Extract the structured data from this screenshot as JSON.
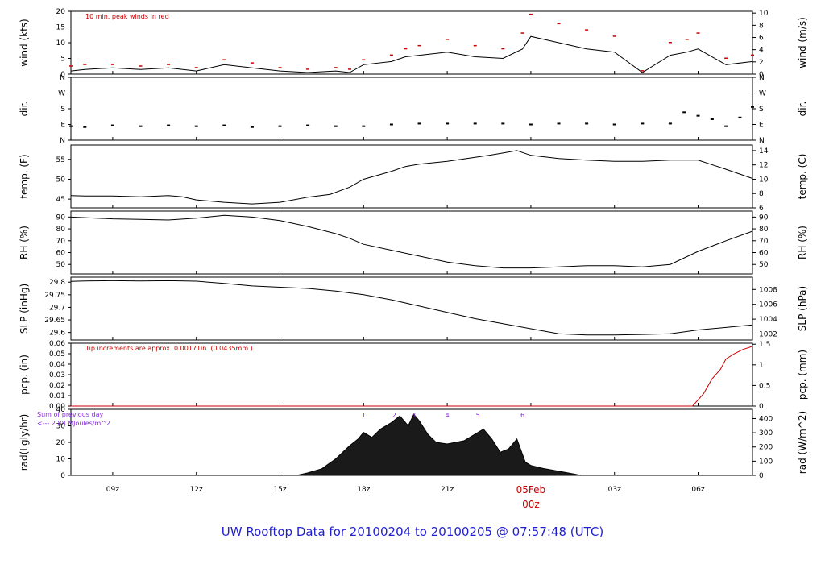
{
  "title": "UW Rooftop Data for 20100204  to  20100205 @ 07:57:48  (UTC)",
  "colors": {
    "line": "#000000",
    "peak": "#cc0000",
    "precip": "#cc0000",
    "solar_note": "#8a2be2",
    "title": "#1f1fd0"
  },
  "chart_data": [
    {
      "type": "line",
      "name": "wind",
      "ylabel": "wind (kts)",
      "ylabel_right": "wind (m/s)",
      "ylim": [
        0,
        20
      ],
      "yticks": [
        0,
        5,
        10,
        15,
        20
      ],
      "yticks_right": [
        {
          "label": "0",
          "value": 0
        },
        {
          "label": "2",
          "value": 3.89
        },
        {
          "label": "4",
          "value": 7.78
        },
        {
          "label": "6",
          "value": 11.66
        },
        {
          "label": "8",
          "value": 15.55
        },
        {
          "label": "10",
          "value": 19.44
        }
      ],
      "annotation": "10 min. peak winds in red",
      "x_hours": [
        7.5,
        8,
        9,
        10,
        11,
        12,
        13,
        14,
        15,
        16,
        17,
        17.5,
        18,
        19,
        19.5,
        20,
        21,
        22,
        23,
        23.7,
        24,
        25,
        26,
        27,
        28,
        29,
        29.6,
        30,
        31,
        31.95
      ],
      "values": [
        1,
        1.5,
        2,
        1.5,
        2,
        1,
        3,
        2,
        1,
        0.5,
        1,
        0.5,
        3,
        4,
        5.5,
        6,
        7,
        5.5,
        5,
        8,
        12,
        10,
        8,
        7,
        0.5,
        6,
        7,
        8,
        3,
        4
      ],
      "peaks": [
        2.5,
        3,
        3,
        2.5,
        3,
        2,
        4.5,
        3.5,
        2,
        1.5,
        2,
        1.5,
        4.5,
        6,
        8,
        9,
        11,
        9,
        8,
        13,
        19,
        16,
        14,
        12,
        1,
        10,
        11,
        13,
        5,
        6
      ]
    },
    {
      "type": "scatter",
      "name": "direction",
      "ylabel": "dir.",
      "ylabel_right": "dir.",
      "ylim": [
        0,
        360
      ],
      "yticks": [
        {
          "label": "N",
          "value": 0
        },
        {
          "label": "E",
          "value": 90
        },
        {
          "label": "S",
          "value": 180
        },
        {
          "label": "W",
          "value": 270
        },
        {
          "label": "N",
          "value": 360
        }
      ],
      "x_hours": [
        7.5,
        8,
        9,
        10,
        11,
        12,
        13,
        14,
        15,
        16,
        17,
        18,
        19,
        20,
        21,
        22,
        23,
        24,
        25,
        26,
        27,
        28,
        29,
        29.5,
        30,
        30.5,
        31,
        31.5,
        31.95
      ],
      "values": [
        80,
        75,
        85,
        80,
        85,
        80,
        85,
        75,
        80,
        85,
        80,
        80,
        90,
        95,
        95,
        95,
        95,
        90,
        95,
        95,
        90,
        95,
        95,
        160,
        140,
        120,
        80,
        130,
        190
      ]
    },
    {
      "type": "line",
      "name": "temperature",
      "ylabel": "temp. (F)",
      "ylabel_right": "temp. (C)",
      "ylim": [
        42.8,
        58.6
      ],
      "yticks": [
        45,
        50,
        55
      ],
      "yticks_right": [
        {
          "label": "6",
          "value": 42.8
        },
        {
          "label": "8",
          "value": 46.4
        },
        {
          "label": "10",
          "value": 50
        },
        {
          "label": "12",
          "value": 53.6
        },
        {
          "label": "14",
          "value": 57.2
        }
      ],
      "x_hours": [
        7.5,
        8,
        9,
        10,
        11,
        11.5,
        12,
        13,
        14,
        15,
        16,
        16.8,
        17.5,
        18,
        19,
        19.5,
        20,
        21,
        22,
        22.5,
        23,
        23.5,
        24,
        25,
        26,
        27,
        28,
        29,
        30,
        31,
        31.95
      ],
      "values": [
        45.9,
        45.8,
        45.8,
        45.6,
        45.9,
        45.6,
        44.8,
        44.2,
        43.8,
        44.2,
        45.5,
        46.2,
        48,
        50,
        52,
        53.2,
        53.8,
        54.5,
        55.5,
        56,
        56.6,
        57.2,
        56,
        55.2,
        54.8,
        54.5,
        54.5,
        54.8,
        54.8,
        52.5,
        50.2
      ]
    },
    {
      "type": "line",
      "name": "relative_humidity",
      "ylabel": "RH (%)",
      "ylabel_right": "RH (%)",
      "ylim": [
        42,
        95
      ],
      "yticks": [
        50,
        60,
        70,
        80,
        90
      ],
      "x_hours": [
        7.5,
        8,
        9,
        10,
        11,
        12,
        13,
        14,
        15,
        16,
        17,
        17.5,
        18,
        19,
        20,
        21,
        22,
        23,
        24,
        25,
        26,
        27,
        28,
        29,
        30,
        31,
        31.95
      ],
      "values": [
        90,
        89.5,
        88.5,
        88,
        87.5,
        89,
        91.5,
        90,
        87,
        82,
        76,
        72,
        67,
        62,
        57,
        52,
        49,
        47,
        47,
        48,
        49,
        49,
        48,
        50,
        61,
        70,
        78
      ]
    },
    {
      "type": "line",
      "name": "sea_level_pressure",
      "ylabel": "SLP (inHg)",
      "ylabel_right": "SLP (hPa)",
      "ylim": [
        29.57,
        29.82
      ],
      "yticks": [
        29.6,
        29.65,
        29.7,
        29.75,
        29.8
      ],
      "yticks_right": [
        {
          "label": "1002",
          "value": 29.594
        },
        {
          "label": "1004",
          "value": 29.653
        },
        {
          "label": "1006",
          "value": 29.712
        },
        {
          "label": "1008",
          "value": 29.771
        }
      ],
      "x_hours": [
        7.5,
        8,
        9,
        10,
        11,
        12,
        13,
        14,
        15,
        16,
        17,
        18,
        19,
        20,
        21,
        22,
        23,
        24,
        25,
        26,
        27,
        28,
        29,
        30,
        31,
        31.95
      ],
      "values": [
        29.803,
        29.805,
        29.806,
        29.805,
        29.806,
        29.804,
        29.795,
        29.785,
        29.78,
        29.775,
        29.765,
        29.75,
        29.73,
        29.705,
        29.68,
        29.655,
        29.635,
        29.615,
        29.595,
        29.59,
        29.59,
        29.592,
        29.595,
        29.61,
        29.62,
        29.63
      ]
    },
    {
      "type": "line",
      "name": "precipitation",
      "ylabel": "pcp. (in)",
      "ylabel_right": "pcp. (mm)",
      "ylim": [
        0,
        0.06
      ],
      "yticks": [
        0.0,
        0.01,
        0.02,
        0.03,
        0.04,
        0.05,
        0.06
      ],
      "ytick_labels": [
        "0.00",
        "0.01",
        "0.02",
        "0.03",
        "0.04",
        "0.05",
        "0.06"
      ],
      "yticks_right": [
        {
          "label": "0",
          "value": 0
        },
        {
          "label": "0.5",
          "value": 0.01969
        },
        {
          "label": "1",
          "value": 0.03937
        },
        {
          "label": "1.5",
          "value": 0.05906
        }
      ],
      "annotation": "Tip increments are approx. 0.00171in. (0.0435mm.)",
      "x_hours": [
        7.5,
        29.8,
        30.2,
        30.5,
        30.8,
        31.0,
        31.3,
        31.6,
        31.95
      ],
      "values": [
        0,
        0,
        0.012,
        0.026,
        0.035,
        0.045,
        0.05,
        0.054,
        0.057
      ]
    },
    {
      "type": "area",
      "name": "solar_radiation",
      "ylabel": "rad(Lgly/hr)",
      "ylabel_right": "rad (W/m^2)",
      "ylim": [
        0,
        40
      ],
      "yticks": [
        0,
        10,
        20,
        30,
        40
      ],
      "yticks_right": [
        {
          "label": "0",
          "value": 0
        },
        {
          "label": "100",
          "value": 8.6
        },
        {
          "label": "200",
          "value": 17.2
        },
        {
          "label": "300",
          "value": 25.8
        },
        {
          "label": "400",
          "value": 34.4
        }
      ],
      "annotation_lines": [
        "Sum of previous day",
        "<--- 2.88 MJoules/m^2"
      ],
      "peak_markers": [
        {
          "label": "1",
          "x": 18
        },
        {
          "label": "2",
          "x": 19.1
        },
        {
          "label": "3",
          "x": 19.8
        },
        {
          "label": "4",
          "x": 21
        },
        {
          "label": "5",
          "x": 22.1
        },
        {
          "label": "6",
          "x": 23.7
        }
      ],
      "x_hours": [
        15.6,
        16,
        16.5,
        17,
        17.5,
        17.8,
        18,
        18.3,
        18.6,
        19,
        19.3,
        19.6,
        19.8,
        20,
        20.3,
        20.6,
        21,
        21.3,
        21.6,
        22,
        22.3,
        22.6,
        22.9,
        23.2,
        23.5,
        23.8,
        24,
        24.5,
        25,
        25.5,
        25.8
      ],
      "values": [
        0,
        1.5,
        4,
        10,
        18,
        22,
        26,
        23,
        28,
        32,
        36,
        30,
        37,
        33,
        25,
        20,
        19,
        20,
        21,
        25,
        28,
        22,
        14,
        16,
        22,
        8,
        6,
        4,
        2.5,
        1,
        0
      ]
    }
  ],
  "time_axis": {
    "xlim_hours": [
      7.5,
      31.95
    ],
    "ticks": [
      {
        "label": "09z",
        "hour": 9
      },
      {
        "label": "12z",
        "hour": 12
      },
      {
        "label": "15z",
        "hour": 15
      },
      {
        "label": "18z",
        "hour": 18
      },
      {
        "label": "21z",
        "hour": 21
      },
      {
        "label": "03z",
        "hour": 27
      },
      {
        "label": "06z",
        "hour": 30
      }
    ],
    "date_marker": {
      "hour": 24,
      "date": "05Feb",
      "time": "00z"
    }
  }
}
